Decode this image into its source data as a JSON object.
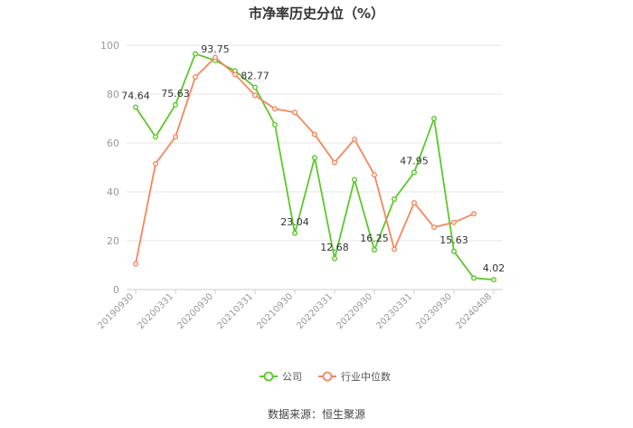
{
  "chart_data": {
    "type": "line",
    "title": "市净率历史分位（%）",
    "source": "数据来源：恒生聚源",
    "ylim": [
      0,
      100
    ],
    "yticks": [
      0,
      20,
      40,
      60,
      80,
      100
    ],
    "grid": true,
    "legend_position": "bottom",
    "x_tick_labels": [
      "20190930",
      "20200331",
      "20200930",
      "20210331",
      "20210930",
      "20220331",
      "20220930",
      "20230331",
      "20230930",
      "20240408"
    ],
    "series": [
      {
        "name": "公司",
        "color": "#5cc72a",
        "values": [
          74.64,
          62.5,
          75.63,
          96.5,
          93.75,
          89.5,
          82.77,
          67.5,
          23.04,
          54.0,
          12.68,
          45.0,
          16.25,
          37.0,
          47.95,
          70.0,
          15.63,
          4.7,
          4.02
        ]
      },
      {
        "name": "行业中位数",
        "color": "#f5875c",
        "values": [
          10.5,
          51.5,
          62.5,
          87.0,
          95.0,
          88.0,
          79.5,
          74.0,
          72.5,
          63.5,
          52.0,
          61.5,
          47.0,
          16.5,
          35.5,
          25.5,
          27.5,
          31.0,
          null
        ]
      }
    ],
    "annotations": [
      {
        "series": 0,
        "index": 0,
        "text": "74.64"
      },
      {
        "series": 0,
        "index": 2,
        "text": "75.63"
      },
      {
        "series": 0,
        "index": 4,
        "text": "93.75"
      },
      {
        "series": 0,
        "index": 6,
        "text": "82.77"
      },
      {
        "series": 0,
        "index": 8,
        "text": "23.04"
      },
      {
        "series": 0,
        "index": 10,
        "text": "12.68"
      },
      {
        "series": 0,
        "index": 12,
        "text": "16.25"
      },
      {
        "series": 0,
        "index": 14,
        "text": "47.95"
      },
      {
        "series": 0,
        "index": 16,
        "text": "15.63"
      },
      {
        "series": 0,
        "index": 18,
        "text": "4.02"
      }
    ]
  }
}
